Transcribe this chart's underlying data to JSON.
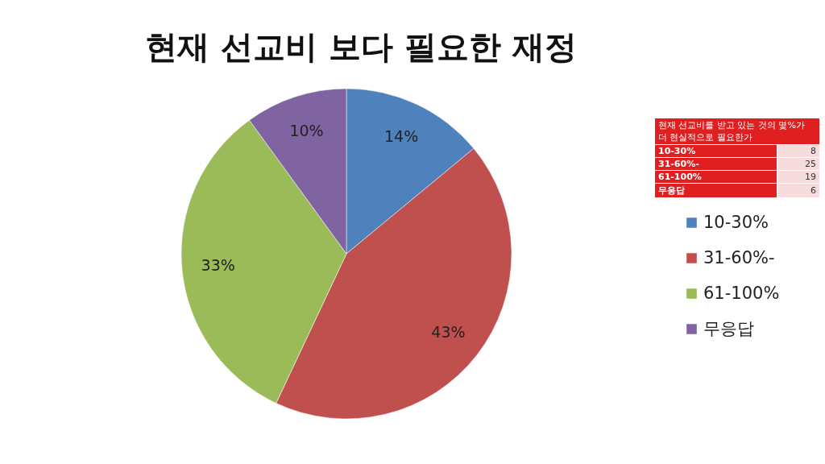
{
  "chart_data": [
    {
      "type": "pie",
      "title": "현재 선교비 보다 필요한 재정",
      "categories": [
        "10-30%",
        "31-60%-",
        "61-100%",
        "무응답"
      ],
      "values": [
        14,
        43,
        33,
        10
      ],
      "value_labels": [
        "14%",
        "43%",
        "33%",
        "10%"
      ],
      "colors": [
        "#4f81bd",
        "#c0504d",
        "#9bbb59",
        "#8064a2"
      ],
      "legend": "right"
    },
    {
      "type": "other",
      "title": "현재 선교비를 받고 있는 것의 몇%가 더 현실적으로 필요한가",
      "categories": [
        "10-30%",
        "31-60%-",
        "61-100%",
        "무응답"
      ],
      "values": [
        8,
        25,
        19,
        6
      ],
      "data_labels": true
    }
  ]
}
